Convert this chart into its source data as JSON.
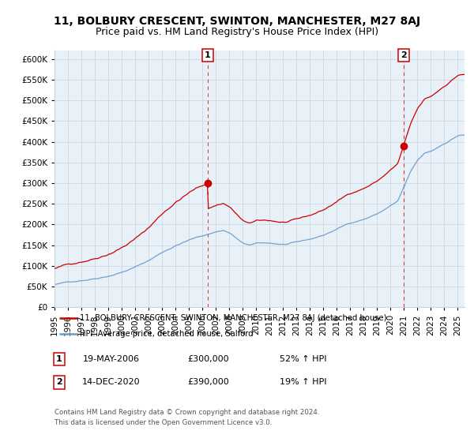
{
  "title": "11, BOLBURY CRESCENT, SWINTON, MANCHESTER, M27 8AJ",
  "subtitle": "Price paid vs. HM Land Registry's House Price Index (HPI)",
  "ylim": [
    0,
    620000
  ],
  "yticks": [
    0,
    50000,
    100000,
    150000,
    200000,
    250000,
    300000,
    350000,
    400000,
    450000,
    500000,
    550000,
    600000
  ],
  "xlim_start": 1995.0,
  "xlim_end": 2025.5,
  "background_color": "#ffffff",
  "chart_bg_color": "#e8f0f8",
  "grid_color": "#c8d4e0",
  "sale1_x": 2006.38,
  "sale1_y": 300000,
  "sale2_x": 2020.96,
  "sale2_y": 390000,
  "marker_color": "#cc0000",
  "hpi_color": "#6699cc",
  "sale_color": "#cc0000",
  "legend_label_sale": "11, BOLBURY CRESCENT, SWINTON, MANCHESTER, M27 8AJ (detached house)",
  "legend_label_hpi": "HPI: Average price, detached house, Salford",
  "ann1_label": "1",
  "ann2_label": "2",
  "table_row1": [
    "1",
    "19-MAY-2006",
    "£300,000",
    "52% ↑ HPI"
  ],
  "table_row2": [
    "2",
    "14-DEC-2020",
    "£390,000",
    "19% ↑ HPI"
  ],
  "footnote": "Contains HM Land Registry data © Crown copyright and database right 2024.\nThis data is licensed under the Open Government Licence v3.0.",
  "title_fontsize": 10,
  "subtitle_fontsize": 9,
  "tick_fontsize": 7.5
}
